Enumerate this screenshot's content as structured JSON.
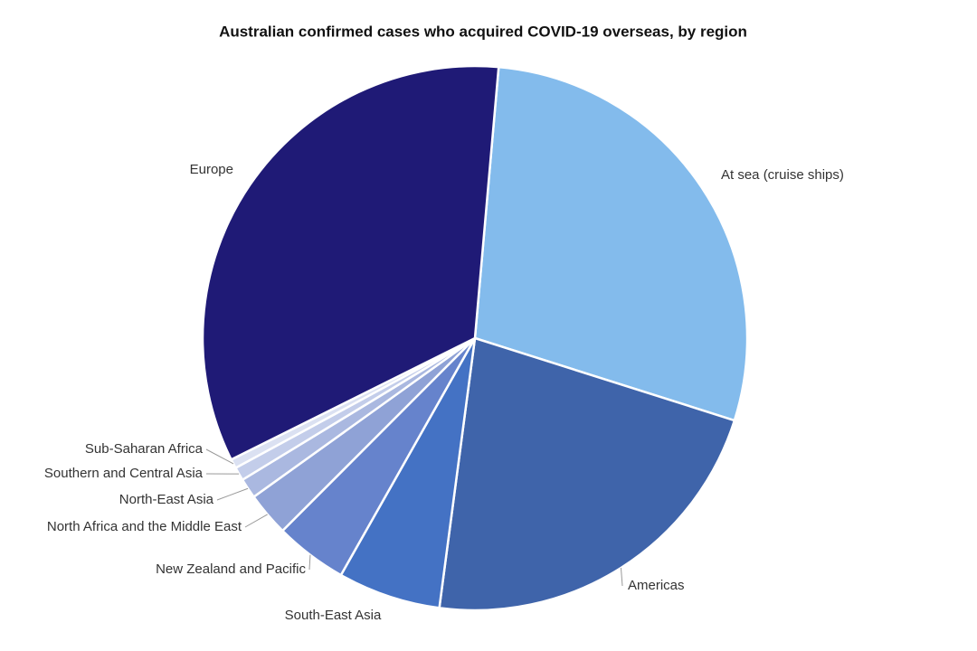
{
  "chart_data": {
    "type": "pie",
    "title": "Australian confirmed cases who acquired COVID-19 overseas, by region",
    "categories": [
      "At sea (cruise ships)",
      "Americas",
      "South-East Asia",
      "New Zealand and Pacific",
      "North Africa and the Middle East",
      "North-East Asia",
      "Southern and Central Asia",
      "Sub-Saharan Africa",
      "Europe"
    ],
    "values": [
      28.5,
      22.2,
      6.1,
      4.3,
      2.6,
      1.2,
      0.8,
      0.55,
      33.75
    ],
    "colors": [
      "#83bbec",
      "#3f64aa",
      "#4472c4",
      "#6683cc",
      "#8fa2d6",
      "#aab8e0",
      "#c3cdea",
      "#dbe1f2",
      "#1f1a76"
    ]
  }
}
